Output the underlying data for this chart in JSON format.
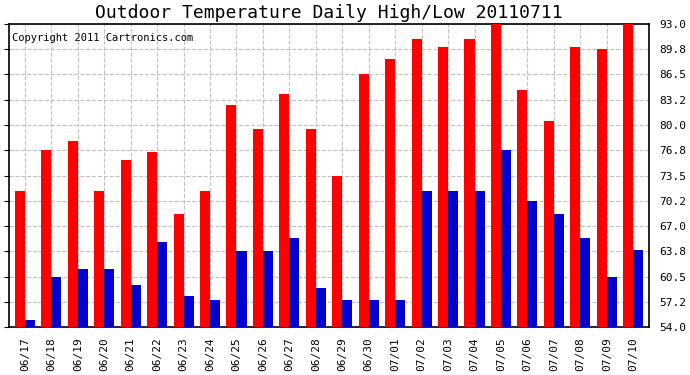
{
  "title": "Outdoor Temperature Daily High/Low 20110711",
  "copyright_text": "Copyright 2011 Cartronics.com",
  "dates": [
    "06/17",
    "06/18",
    "06/19",
    "06/20",
    "06/21",
    "06/22",
    "06/23",
    "06/24",
    "06/25",
    "06/26",
    "06/27",
    "06/28",
    "06/29",
    "06/30",
    "07/01",
    "07/02",
    "07/03",
    "07/04",
    "07/05",
    "07/06",
    "07/07",
    "07/08",
    "07/09",
    "07/10"
  ],
  "highs": [
    71.5,
    76.8,
    78.0,
    71.5,
    75.5,
    76.5,
    68.5,
    71.5,
    82.5,
    79.5,
    84.0,
    79.5,
    73.5,
    86.5,
    88.5,
    91.0,
    90.0,
    91.0,
    93.0,
    84.5,
    80.5,
    90.0,
    89.8,
    93.0
  ],
  "lows": [
    55.0,
    60.5,
    61.5,
    61.5,
    59.5,
    65.0,
    58.0,
    57.5,
    63.8,
    63.8,
    65.5,
    59.0,
    57.5,
    57.5,
    57.5,
    71.5,
    71.5,
    71.5,
    76.8,
    70.2,
    68.5,
    65.5,
    60.5,
    64.0
  ],
  "bar_color_high": "#ff0000",
  "bar_color_low": "#0000cc",
  "background_color": "#ffffff",
  "plot_bg_color": "#ffffff",
  "grid_color": "#c0c0c0",
  "ymin": 54.0,
  "ymax": 93.0,
  "yticks": [
    54.0,
    57.2,
    60.5,
    63.8,
    67.0,
    70.2,
    73.5,
    76.8,
    80.0,
    83.2,
    86.5,
    89.8,
    93.0
  ],
  "bar_width": 0.38,
  "title_fontsize": 13,
  "copyright_fontsize": 7.5,
  "tick_fontsize": 8,
  "figwidth": 6.9,
  "figheight": 3.75,
  "dpi": 100
}
